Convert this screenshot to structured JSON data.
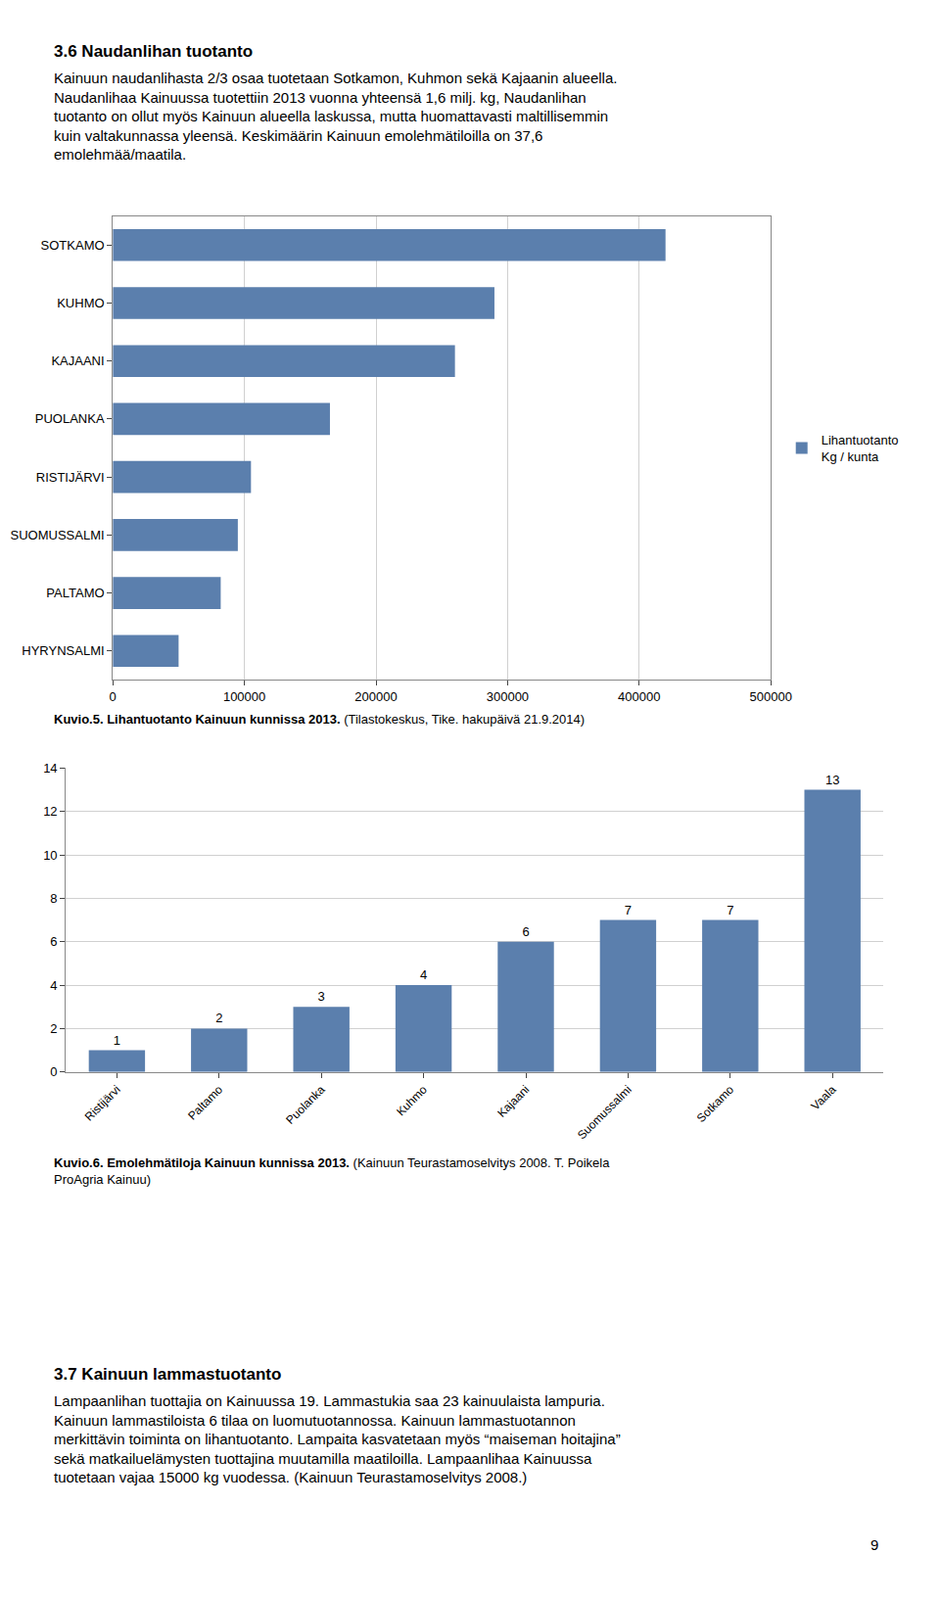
{
  "page_text": {
    "top": {
      "heading": "3.6 Naudanlihan tuotanto",
      "lines": [
        "Kainuun naudanlihasta 2/3 osaa tuotetaan Sotkamon, Kuhmon sekä Kajaanin alueella.",
        "Naudanlihaa Kainuussa tuotettiin 2013 vuonna yhteensä 1,6 milj. kg, Naudanlihan",
        "tuotanto on ollut myös Kainuun alueella laskussa, mutta huomattavasti maltillisemmin",
        "kuin valtakunnassa yleensä. Keskimäärin Kainuun emolehmätiloilla on 37,6",
        "emolehmää/maatila."
      ]
    },
    "bottom": {
      "heading": "3.7 Kainuun lammastuotanto",
      "lines": [
        "Lampaanlihan tuottajia on Kainuussa 19. Lammastukia saa 23 kainuulaista lampuria.",
        "Kainuun lammastiloista 6 tilaa on luomutuotannossa. Kainuun lammastuotannon",
        "merkittävin toiminta on lihantuotanto. Lampaita kasvatetaan myös “maiseman hoitajina”",
        "sekä matkailuelämysten tuottajina muutamilla maatiloilla. Lampaanlihaa Kainuussa",
        "tuotetaan vajaa 15000 kg vuodessa. (Kainuun Teurastamoselvitys 2008.)"
      ]
    },
    "page_number": "9"
  },
  "chart_data": [
    {
      "type": "bar",
      "orientation": "horizontal",
      "categories": [
        "SOTKAMO",
        "KUHMO",
        "KAJAANI",
        "PUOLANKA",
        "RISTIJÄRVI",
        "SUOMUSSALMI",
        "PALTAMO",
        "HYRYNSALMI"
      ],
      "series": [
        {
          "name": "Lihantuotanto\nKg / kunta",
          "color": "#5b7fad",
          "values": [
            420000,
            290000,
            260000,
            165000,
            105000,
            95000,
            82000,
            50000
          ]
        }
      ],
      "xlim": [
        0,
        500000
      ],
      "xticks": [
        0,
        100000,
        200000,
        300000,
        400000,
        500000
      ],
      "grid": true,
      "legend": "right",
      "caption": "Kuvio.5. Lihantuotanto Kainuun kunnissa 2013.",
      "source": " (Tilastokeskus, Tike. hakupäivä 21.9.2014)"
    },
    {
      "type": "bar",
      "categories": [
        "Ristijärvi",
        "Paltamo",
        "Puolanka",
        "Kuhmo",
        "Kajaani",
        "Suomussalmi",
        "Sotkamo",
        "Vaala"
      ],
      "values": [
        1,
        2,
        3,
        4,
        6,
        7,
        7,
        13
      ],
      "color": "#5b7fad",
      "ylim": [
        0,
        14
      ],
      "yticks": [
        0,
        2,
        4,
        6,
        8,
        10,
        12,
        14
      ],
      "grid": true,
      "data_labels": true,
      "caption": "Kuvio.6. Emolehmätiloja Kainuun kunnissa 2013.",
      "source": " (Kainuun Teurastamoselvitys 2008. T. Poikela\nProAgria Kainuu)"
    }
  ]
}
